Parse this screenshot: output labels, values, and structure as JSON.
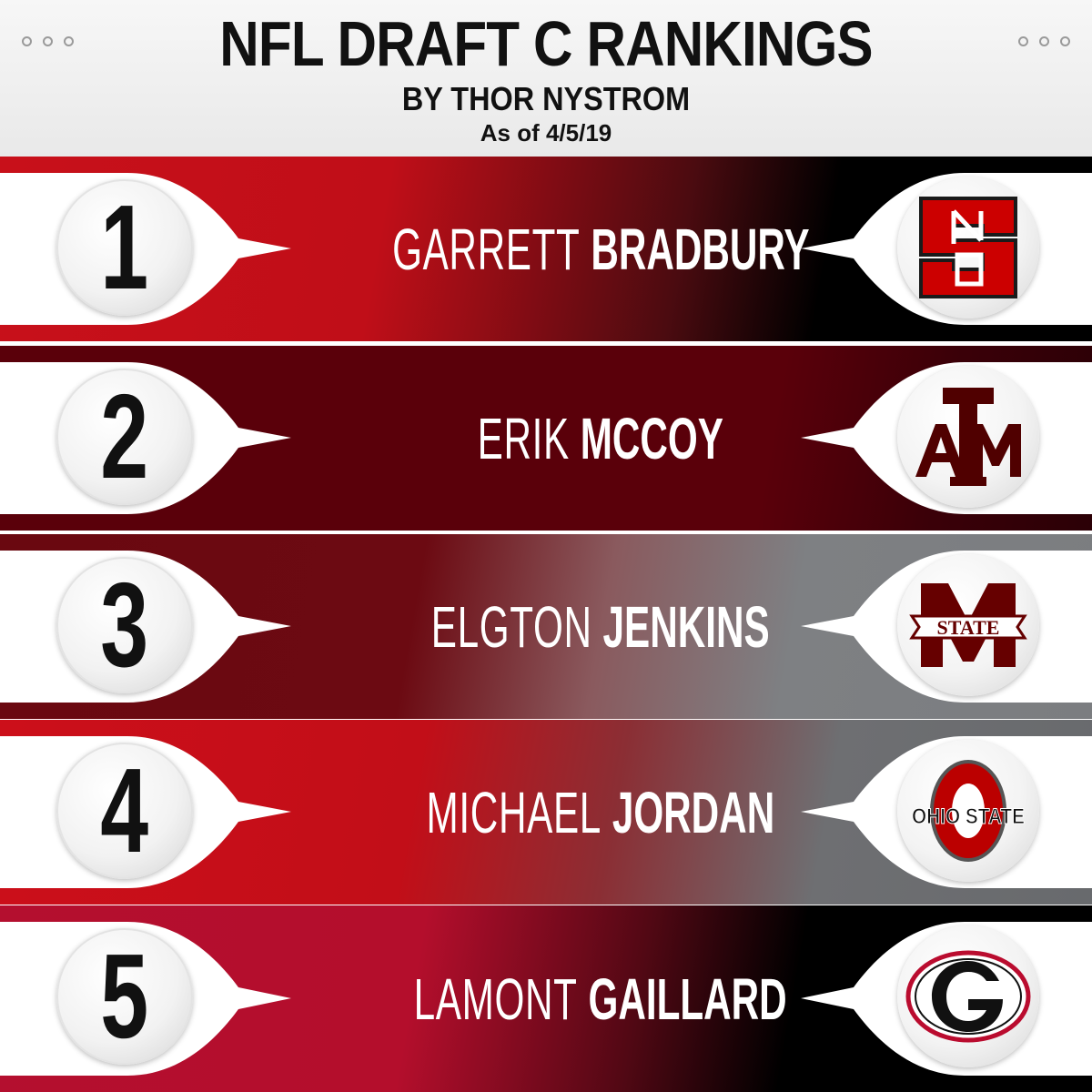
{
  "header": {
    "title": "NFL DRAFT C RANKINGS",
    "byline": "BY THOR NYSTROM",
    "date": "As of 4/5/19"
  },
  "rankings": [
    {
      "rank": "1",
      "first": "GARRETT",
      "last": "BRADBURY",
      "school_logo": "nc-state-logo"
    },
    {
      "rank": "2",
      "first": "ERIK",
      "last": "MCCOY",
      "school_logo": "texas-am-logo"
    },
    {
      "rank": "3",
      "first": "ELGTON",
      "last": "JENKINS",
      "school_logo": "mississippi-state-logo"
    },
    {
      "rank": "4",
      "first": "MICHAEL",
      "last": "JORDAN",
      "school_logo": "ohio-state-logo"
    },
    {
      "rank": "5",
      "first": "LAMONT",
      "last": "GAILLARD",
      "school_logo": "georgia-logo"
    }
  ],
  "logo_text": {
    "msu_banner": "STATE",
    "ohio_state": "OHIO STATE"
  },
  "colors": {
    "nc_state_red": "#cc0000",
    "texas_am_maroon": "#500000",
    "msu_maroon": "#660000",
    "ohio_state_scarlet": "#bb0000",
    "georgia_red": "#ba0c2f"
  }
}
